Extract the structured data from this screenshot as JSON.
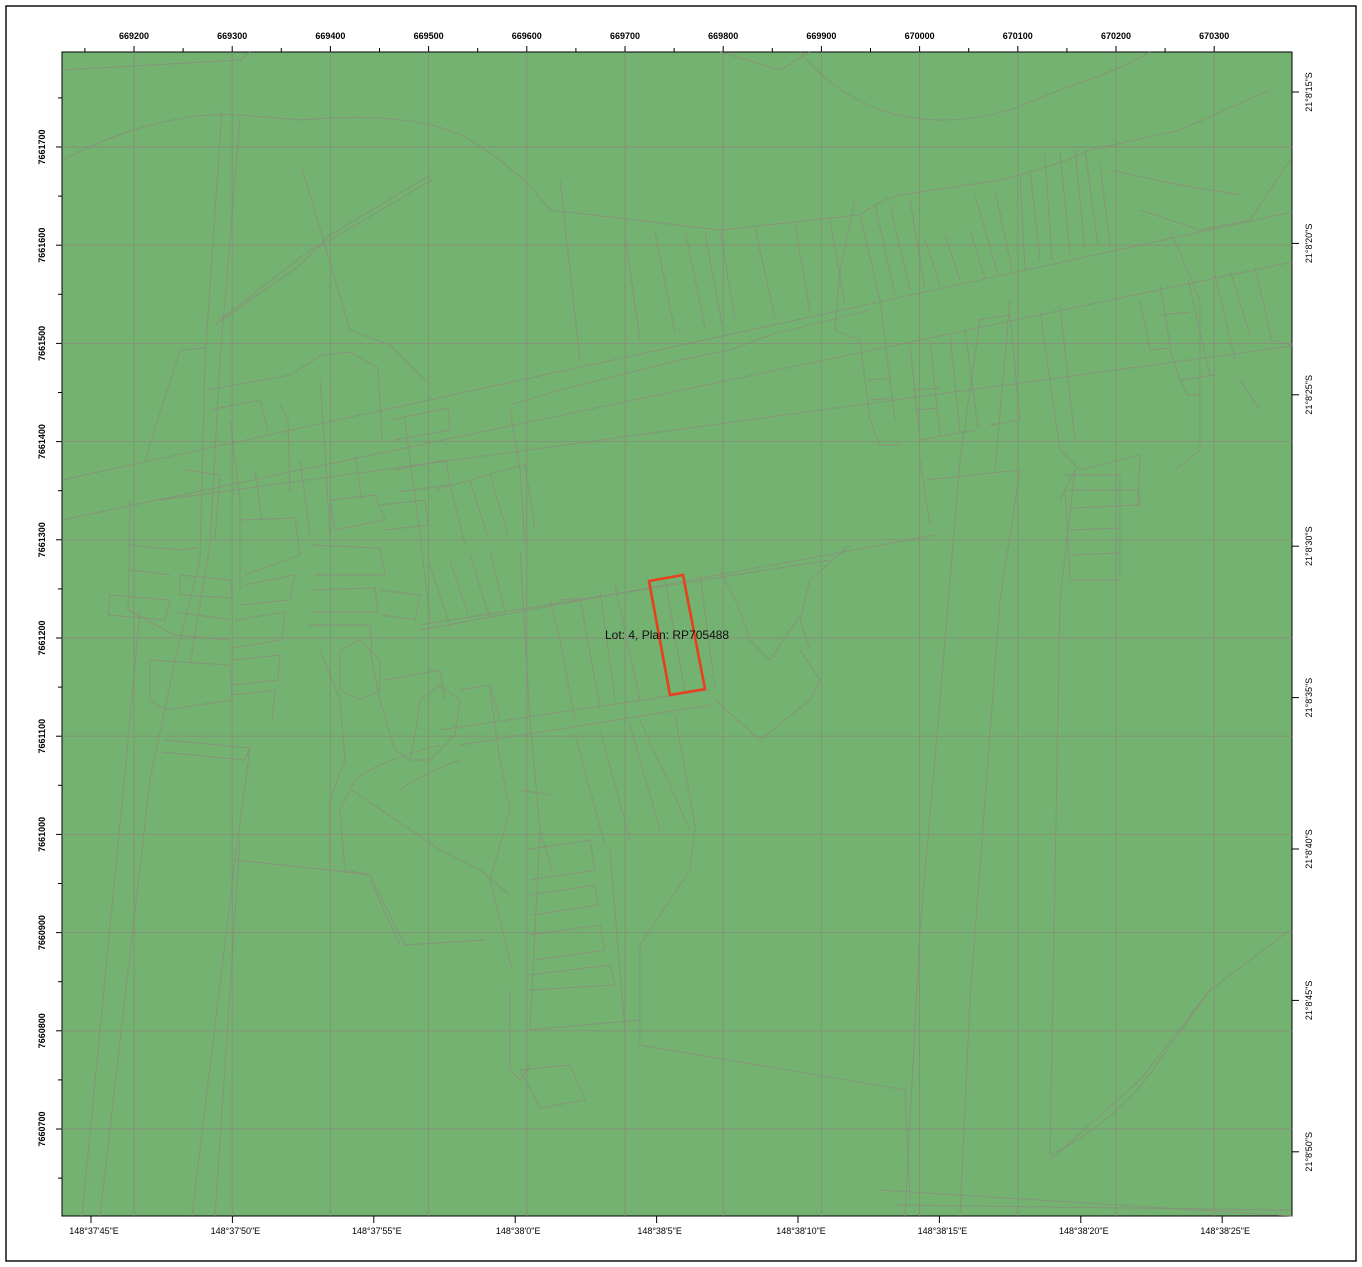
{
  "map": {
    "background_color": "#73b271",
    "highlight_color": "#e8401c",
    "lot_label": "Lot: 4, Plan: RP705488",
    "easting_ticks": [
      "669200",
      "669300",
      "669400",
      "669500",
      "669600",
      "669700",
      "669800",
      "669900",
      "670000",
      "670100",
      "670200",
      "670300"
    ],
    "northing_ticks": [
      "7661700",
      "7661600",
      "7661500",
      "7661400",
      "7661300",
      "7661200",
      "7661100",
      "7661000",
      "7660900",
      "7660800",
      "7660700"
    ],
    "longitude_ticks": [
      "148°37'45\"E",
      "148°37'50\"E",
      "148°37'55\"E",
      "148°38'0\"E",
      "148°38'5\"E",
      "148°38'10\"E",
      "148°38'15\"E",
      "148°38'20\"E",
      "148°38'25\"E"
    ],
    "latitude_ticks": [
      "21°8'15\"S",
      "21°8'20\"S",
      "21°8'25\"S",
      "21°8'30\"S",
      "21°8'35\"S",
      "21°8'40\"S",
      "21°8'45\"S",
      "21°8'50\"S"
    ]
  }
}
